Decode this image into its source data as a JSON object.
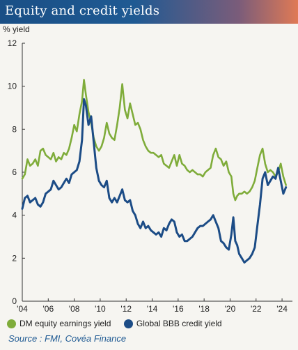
{
  "title": "Equity and credit yields",
  "source": "Source : FMI, Covéa Finance",
  "chart_data": {
    "type": "line",
    "ylabel": "% yield",
    "xlabel": "",
    "ylim": [
      0,
      12
    ],
    "yticks": [
      0,
      2,
      4,
      6,
      8,
      10,
      12
    ],
    "xlim": [
      2004.0,
      2024.8
    ],
    "xticks": [
      {
        "v": 2004,
        "label": "'04"
      },
      {
        "v": 2006,
        "label": "'06"
      },
      {
        "v": 2008,
        "label": "'08"
      },
      {
        "v": 2010,
        "label": "'10"
      },
      {
        "v": 2012,
        "label": "'12"
      },
      {
        "v": 2014,
        "label": "'14"
      },
      {
        "v": 2016,
        "label": "'16"
      },
      {
        "v": 2018,
        "label": "'18"
      },
      {
        "v": 2020,
        "label": "'20"
      },
      {
        "v": 2022,
        "label": "'22"
      },
      {
        "v": 2024,
        "label": "'24"
      }
    ],
    "grid": false,
    "legend_position": "bottom",
    "series": [
      {
        "name": "DM equity earnings yield",
        "color": "#7fac3a",
        "points": [
          [
            2004.0,
            5.7
          ],
          [
            2004.2,
            5.9
          ],
          [
            2004.4,
            6.6
          ],
          [
            2004.6,
            6.3
          ],
          [
            2004.8,
            6.4
          ],
          [
            2005.0,
            6.6
          ],
          [
            2005.2,
            6.3
          ],
          [
            2005.4,
            7.0
          ],
          [
            2005.6,
            7.1
          ],
          [
            2005.8,
            6.8
          ],
          [
            2006.0,
            6.7
          ],
          [
            2006.2,
            6.6
          ],
          [
            2006.4,
            6.9
          ],
          [
            2006.6,
            6.5
          ],
          [
            2006.8,
            6.7
          ],
          [
            2007.0,
            6.6
          ],
          [
            2007.2,
            6.9
          ],
          [
            2007.4,
            6.8
          ],
          [
            2007.6,
            7.1
          ],
          [
            2007.8,
            7.6
          ],
          [
            2008.0,
            8.2
          ],
          [
            2008.2,
            7.9
          ],
          [
            2008.4,
            8.7
          ],
          [
            2008.6,
            9.3
          ],
          [
            2008.75,
            10.3
          ],
          [
            2008.9,
            9.6
          ],
          [
            2009.1,
            8.8
          ],
          [
            2009.3,
            8.3
          ],
          [
            2009.5,
            7.6
          ],
          [
            2009.7,
            7.2
          ],
          [
            2009.9,
            7.0
          ],
          [
            2010.1,
            7.2
          ],
          [
            2010.3,
            7.6
          ],
          [
            2010.5,
            8.3
          ],
          [
            2010.7,
            7.8
          ],
          [
            2010.9,
            7.6
          ],
          [
            2011.1,
            7.5
          ],
          [
            2011.3,
            8.2
          ],
          [
            2011.5,
            9.0
          ],
          [
            2011.7,
            10.1
          ],
          [
            2011.9,
            8.9
          ],
          [
            2012.1,
            8.5
          ],
          [
            2012.3,
            9.2
          ],
          [
            2012.5,
            8.7
          ],
          [
            2012.7,
            8.2
          ],
          [
            2012.9,
            8.3
          ],
          [
            2013.1,
            8.0
          ],
          [
            2013.3,
            7.5
          ],
          [
            2013.5,
            7.2
          ],
          [
            2013.7,
            7.0
          ],
          [
            2013.9,
            6.9
          ],
          [
            2014.1,
            6.9
          ],
          [
            2014.3,
            6.8
          ],
          [
            2014.5,
            6.7
          ],
          [
            2014.7,
            6.8
          ],
          [
            2014.9,
            6.4
          ],
          [
            2015.1,
            6.3
          ],
          [
            2015.3,
            6.2
          ],
          [
            2015.5,
            6.5
          ],
          [
            2015.7,
            6.8
          ],
          [
            2015.9,
            6.3
          ],
          [
            2016.1,
            6.8
          ],
          [
            2016.3,
            6.4
          ],
          [
            2016.5,
            6.3
          ],
          [
            2016.7,
            6.1
          ],
          [
            2016.9,
            6.0
          ],
          [
            2017.1,
            6.1
          ],
          [
            2017.3,
            6.0
          ],
          [
            2017.5,
            5.9
          ],
          [
            2017.7,
            5.9
          ],
          [
            2017.9,
            5.8
          ],
          [
            2018.1,
            6.0
          ],
          [
            2018.3,
            6.1
          ],
          [
            2018.5,
            6.2
          ],
          [
            2018.7,
            6.8
          ],
          [
            2018.9,
            7.1
          ],
          [
            2019.1,
            6.7
          ],
          [
            2019.3,
            6.6
          ],
          [
            2019.5,
            6.3
          ],
          [
            2019.7,
            6.5
          ],
          [
            2019.9,
            6.0
          ],
          [
            2020.1,
            5.8
          ],
          [
            2020.25,
            5.0
          ],
          [
            2020.4,
            4.7
          ],
          [
            2020.55,
            4.9
          ],
          [
            2020.7,
            5.0
          ],
          [
            2020.9,
            5.0
          ],
          [
            2021.1,
            5.1
          ],
          [
            2021.3,
            5.0
          ],
          [
            2021.5,
            5.1
          ],
          [
            2021.7,
            5.3
          ],
          [
            2021.9,
            5.6
          ],
          [
            2022.1,
            6.2
          ],
          [
            2022.3,
            6.8
          ],
          [
            2022.5,
            7.1
          ],
          [
            2022.7,
            6.4
          ],
          [
            2022.9,
            6.0
          ],
          [
            2023.1,
            6.1
          ],
          [
            2023.3,
            6.0
          ],
          [
            2023.5,
            5.8
          ],
          [
            2023.7,
            6.0
          ],
          [
            2023.9,
            6.4
          ],
          [
            2024.1,
            5.8
          ],
          [
            2024.3,
            5.4
          ]
        ]
      },
      {
        "name": "Global BBB credit yield",
        "color": "#1c4c86",
        "points": [
          [
            2004.0,
            4.3
          ],
          [
            2004.2,
            4.8
          ],
          [
            2004.4,
            4.9
          ],
          [
            2004.6,
            4.6
          ],
          [
            2004.8,
            4.7
          ],
          [
            2005.0,
            4.8
          ],
          [
            2005.2,
            4.5
          ],
          [
            2005.4,
            4.4
          ],
          [
            2005.6,
            4.6
          ],
          [
            2005.8,
            5.0
          ],
          [
            2006.0,
            5.1
          ],
          [
            2006.2,
            5.2
          ],
          [
            2006.4,
            5.6
          ],
          [
            2006.6,
            5.4
          ],
          [
            2006.8,
            5.2
          ],
          [
            2007.0,
            5.3
          ],
          [
            2007.2,
            5.5
          ],
          [
            2007.4,
            5.7
          ],
          [
            2007.6,
            5.5
          ],
          [
            2007.8,
            5.9
          ],
          [
            2008.0,
            6.0
          ],
          [
            2008.2,
            6.1
          ],
          [
            2008.4,
            6.5
          ],
          [
            2008.6,
            7.5
          ],
          [
            2008.75,
            9.4
          ],
          [
            2008.9,
            9.1
          ],
          [
            2009.1,
            8.2
          ],
          [
            2009.3,
            8.6
          ],
          [
            2009.5,
            7.4
          ],
          [
            2009.7,
            6.2
          ],
          [
            2009.9,
            5.6
          ],
          [
            2010.1,
            5.4
          ],
          [
            2010.3,
            5.3
          ],
          [
            2010.5,
            5.6
          ],
          [
            2010.7,
            4.8
          ],
          [
            2010.9,
            4.6
          ],
          [
            2011.1,
            4.8
          ],
          [
            2011.3,
            4.6
          ],
          [
            2011.5,
            4.9
          ],
          [
            2011.7,
            5.2
          ],
          [
            2011.9,
            4.7
          ],
          [
            2012.1,
            4.6
          ],
          [
            2012.3,
            4.7
          ],
          [
            2012.5,
            4.2
          ],
          [
            2012.7,
            4.0
          ],
          [
            2012.9,
            3.6
          ],
          [
            2013.1,
            3.4
          ],
          [
            2013.3,
            3.7
          ],
          [
            2013.5,
            3.4
          ],
          [
            2013.7,
            3.5
          ],
          [
            2013.9,
            3.3
          ],
          [
            2014.1,
            3.2
          ],
          [
            2014.3,
            3.1
          ],
          [
            2014.5,
            3.2
          ],
          [
            2014.7,
            3.0
          ],
          [
            2014.9,
            3.4
          ],
          [
            2015.1,
            3.3
          ],
          [
            2015.3,
            3.6
          ],
          [
            2015.5,
            3.8
          ],
          [
            2015.7,
            3.7
          ],
          [
            2015.9,
            3.2
          ],
          [
            2016.1,
            3.0
          ],
          [
            2016.3,
            3.1
          ],
          [
            2016.5,
            2.8
          ],
          [
            2016.7,
            2.8
          ],
          [
            2016.9,
            2.9
          ],
          [
            2017.1,
            3.0
          ],
          [
            2017.3,
            3.2
          ],
          [
            2017.5,
            3.4
          ],
          [
            2017.7,
            3.5
          ],
          [
            2017.9,
            3.5
          ],
          [
            2018.1,
            3.6
          ],
          [
            2018.3,
            3.7
          ],
          [
            2018.5,
            3.8
          ],
          [
            2018.7,
            4.0
          ],
          [
            2018.9,
            3.7
          ],
          [
            2019.1,
            3.4
          ],
          [
            2019.3,
            2.8
          ],
          [
            2019.5,
            2.7
          ],
          [
            2019.7,
            2.5
          ],
          [
            2019.9,
            2.4
          ],
          [
            2020.1,
            3.1
          ],
          [
            2020.25,
            3.9
          ],
          [
            2020.4,
            2.8
          ],
          [
            2020.55,
            2.6
          ],
          [
            2020.7,
            2.2
          ],
          [
            2020.9,
            2.0
          ],
          [
            2021.1,
            1.8
          ],
          [
            2021.3,
            1.9
          ],
          [
            2021.5,
            2.0
          ],
          [
            2021.7,
            2.2
          ],
          [
            2021.9,
            2.5
          ],
          [
            2022.1,
            3.5
          ],
          [
            2022.3,
            4.5
          ],
          [
            2022.5,
            5.7
          ],
          [
            2022.7,
            6.0
          ],
          [
            2022.9,
            5.4
          ],
          [
            2023.1,
            5.6
          ],
          [
            2023.3,
            5.8
          ],
          [
            2023.5,
            5.7
          ],
          [
            2023.7,
            6.2
          ],
          [
            2023.9,
            5.6
          ],
          [
            2024.1,
            5.0
          ],
          [
            2024.3,
            5.3
          ]
        ]
      }
    ]
  }
}
